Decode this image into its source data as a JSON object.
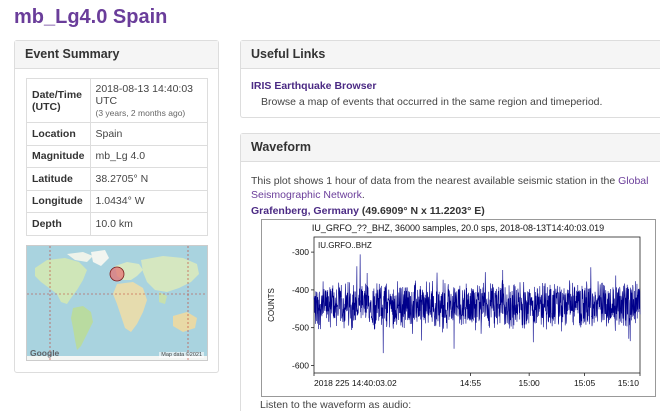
{
  "page": {
    "title": "mb_Lg4.0 Spain"
  },
  "event_summary": {
    "heading": "Event Summary",
    "rows": [
      {
        "label": "Date/Time (UTC)",
        "value": "2018-08-13 14:40:03 UTC",
        "sub": "(3 years, 2 months ago)"
      },
      {
        "label": "Location",
        "value": "Spain"
      },
      {
        "label": "Magnitude",
        "value": "mb_Lg 4.0"
      },
      {
        "label": "Latitude",
        "value": "38.2705° N"
      },
      {
        "label": "Longitude",
        "value": "1.0434° W"
      },
      {
        "label": "Depth",
        "value": "10.0 km"
      }
    ],
    "map": {
      "logo": "Google",
      "credit": "Map data ©2021"
    }
  },
  "useful_links": {
    "heading": "Useful Links",
    "link_label": "IRIS Earthquake Browser",
    "link_desc": "Browse a map of events that occurred in the same region and timeperiod."
  },
  "waveform": {
    "heading": "Waveform",
    "desc_prefix": "This plot shows 1 hour of data from the nearest available seismic station in the ",
    "desc_link": "Global Seismographic Network",
    "desc_suffix": ".",
    "station_name": "Grafenberg, Germany",
    "station_coords": "(49.6909° N x 11.2203° E)",
    "audio_label": "Listen to the waveform as audio:"
  },
  "chart_data": {
    "type": "line",
    "title": "IU_GRFO_??_BHZ, 36000 samples, 20.0 sps, 2018-08-13T14:40:03.019",
    "trace_label": "IU.GRFO..BHZ",
    "ylabel": "COUNTS",
    "xlabel": "",
    "ylim": [
      -620,
      -260
    ],
    "yticks": [
      -300,
      -400,
      -500,
      -600
    ],
    "xticks": [
      "2018 225 14:40:03.02",
      "14:55",
      "15:00",
      "15:05",
      "15:10"
    ],
    "series": [
      {
        "mean": -440,
        "amplitude": 60,
        "color": "#00008b",
        "samples": 36000
      }
    ],
    "grid": false
  }
}
